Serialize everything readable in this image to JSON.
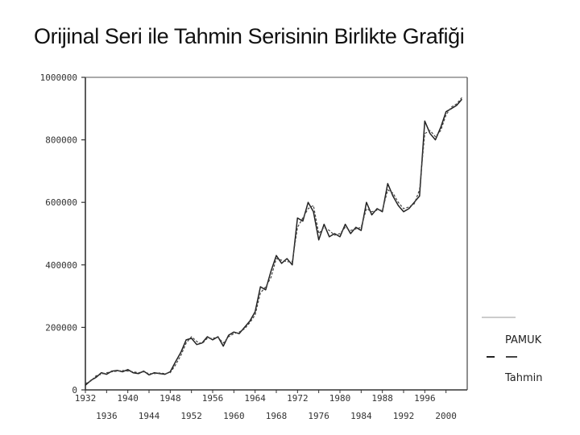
{
  "slide": {
    "title": "Orijinal Seri ile Tahmin Serisinin Birlikte Grafiği"
  },
  "chart_data": {
    "type": "line",
    "title": "Orijinal Seri ile Tahmin Serisinin Birlikte Grafiği",
    "xlim": [
      1932,
      2004
    ],
    "ylim": [
      0,
      1000000
    ],
    "y_ticks": [
      0,
      200000,
      400000,
      600000,
      800000,
      1000000
    ],
    "y_tick_labels": [
      "0",
      "200000",
      "400000",
      "600000",
      "800000",
      "1000000"
    ],
    "x_ticks_upper": [
      1932,
      1940,
      1948,
      1956,
      1964,
      1972,
      1980,
      1988,
      1996
    ],
    "x_ticks_lower": [
      1936,
      1944,
      1952,
      1960,
      1968,
      1976,
      1984,
      1992,
      2000
    ],
    "legend_position": "right",
    "series": [
      {
        "name": "PAMUK",
        "style": "solid",
        "color": "#222222",
        "x": [
          1932,
          1933,
          1934,
          1935,
          1936,
          1937,
          1938,
          1939,
          1940,
          1941,
          1942,
          1943,
          1944,
          1945,
          1946,
          1947,
          1948,
          1949,
          1950,
          1951,
          1952,
          1953,
          1954,
          1955,
          1956,
          1957,
          1958,
          1959,
          1960,
          1961,
          1962,
          1963,
          1964,
          1965,
          1966,
          1967,
          1968,
          1969,
          1970,
          1971,
          1972,
          1973,
          1974,
          1975,
          1976,
          1977,
          1978,
          1979,
          1980,
          1981,
          1982,
          1983,
          1984,
          1985,
          1986,
          1987,
          1988,
          1989,
          1990,
          1991,
          1992,
          1993,
          1994,
          1995,
          1996,
          1997,
          1998,
          1999,
          2000,
          2001,
          2002,
          2003
        ],
        "values": [
          15000,
          30000,
          40000,
          55000,
          50000,
          60000,
          62000,
          58000,
          65000,
          55000,
          52000,
          60000,
          48000,
          55000,
          52000,
          50000,
          58000,
          90000,
          120000,
          160000,
          165000,
          145000,
          150000,
          170000,
          160000,
          170000,
          140000,
          175000,
          185000,
          180000,
          200000,
          220000,
          250000,
          330000,
          320000,
          380000,
          430000,
          405000,
          420000,
          400000,
          550000,
          540000,
          600000,
          570000,
          480000,
          530000,
          490000,
          500000,
          490000,
          530000,
          500000,
          520000,
          510000,
          600000,
          560000,
          580000,
          570000,
          660000,
          620000,
          590000,
          570000,
          580000,
          600000,
          620000,
          860000,
          820000,
          800000,
          840000,
          890000,
          900000,
          910000,
          930000
        ]
      },
      {
        "name": "Tahmin",
        "style": "dashed",
        "color": "#444444",
        "x": [
          1932,
          1933,
          1934,
          1935,
          1936,
          1937,
          1938,
          1939,
          1940,
          1941,
          1942,
          1943,
          1944,
          1945,
          1946,
          1947,
          1948,
          1949,
          1950,
          1951,
          1952,
          1953,
          1954,
          1955,
          1956,
          1957,
          1958,
          1959,
          1960,
          1961,
          1962,
          1963,
          1964,
          1965,
          1966,
          1967,
          1968,
          1969,
          1970,
          1971,
          1972,
          1973,
          1974,
          1975,
          1976,
          1977,
          1978,
          1979,
          1980,
          1981,
          1982,
          1983,
          1984,
          1985,
          1986,
          1987,
          1988,
          1989,
          1990,
          1991,
          1992,
          1993,
          1994,
          1995,
          1996,
          1997,
          1998,
          1999,
          2000,
          2001,
          2002,
          2003
        ],
        "values": [
          20000,
          28000,
          45000,
          50000,
          55000,
          58000,
          60000,
          62000,
          60000,
          58000,
          55000,
          58000,
          52000,
          52000,
          54000,
          52000,
          55000,
          80000,
          110000,
          150000,
          170000,
          155000,
          148000,
          165000,
          165000,
          168000,
          150000,
          170000,
          180000,
          185000,
          195000,
          215000,
          240000,
          310000,
          330000,
          360000,
          420000,
          415000,
          410000,
          410000,
          520000,
          550000,
          580000,
          590000,
          500000,
          520000,
          510000,
          495000,
          500000,
          520000,
          510000,
          515000,
          520000,
          580000,
          570000,
          575000,
          575000,
          640000,
          630000,
          600000,
          580000,
          585000,
          595000,
          640000,
          820000,
          830000,
          810000,
          830000,
          880000,
          905000,
          915000,
          935000
        ]
      }
    ]
  }
}
